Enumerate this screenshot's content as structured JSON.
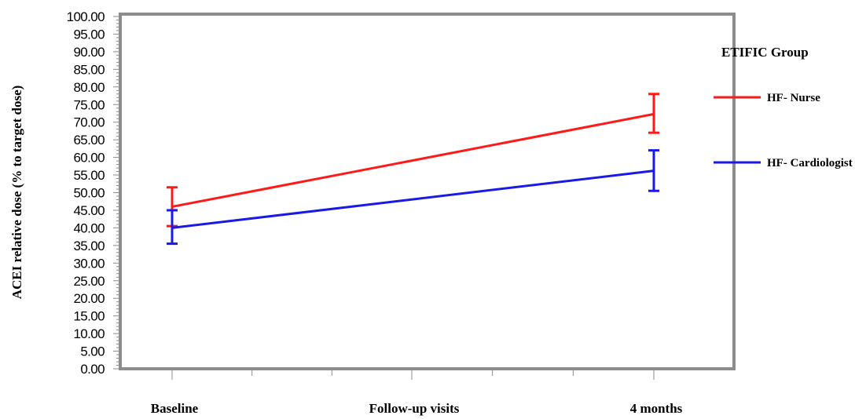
{
  "chart_data": {
    "type": "line",
    "title": "",
    "xlabel": "",
    "ylabel": "ACEI  relative dose (% to target dose)",
    "categories": [
      "Baseline",
      "Follow-up visits",
      "4 months"
    ],
    "series": [
      {
        "name": "HF- Nurse",
        "color": "#ff1a1a",
        "points": [
          {
            "category": "Baseline",
            "y": 46.0,
            "err_low": 40.5,
            "err_high": 51.5
          },
          {
            "category": "4 months",
            "y": 72.3,
            "err_low": 67.0,
            "err_high": 78.0
          }
        ]
      },
      {
        "name": "HF- Cardiologist",
        "color": "#1a1ae6",
        "points": [
          {
            "category": "Baseline",
            "y": 40.0,
            "err_low": 35.5,
            "err_high": 45.0
          },
          {
            "category": "4 months",
            "y": 56.2,
            "err_low": 50.5,
            "err_high": 62.0
          }
        ]
      }
    ],
    "ylim": [
      0,
      100
    ],
    "y_ticks": [
      "0.00",
      "5.00",
      "10.00",
      "15.00",
      "20.00",
      "25.00",
      "30.00",
      "35.00",
      "40.00",
      "45.00",
      "50.00",
      "55.00",
      "60.00",
      "65.00",
      "70.00",
      "75.00",
      "80.00",
      "85.00",
      "90.00",
      "95.00",
      "100.00"
    ],
    "grid": false,
    "legend": {
      "title": "ETIFIC Group",
      "placement": "right"
    }
  }
}
